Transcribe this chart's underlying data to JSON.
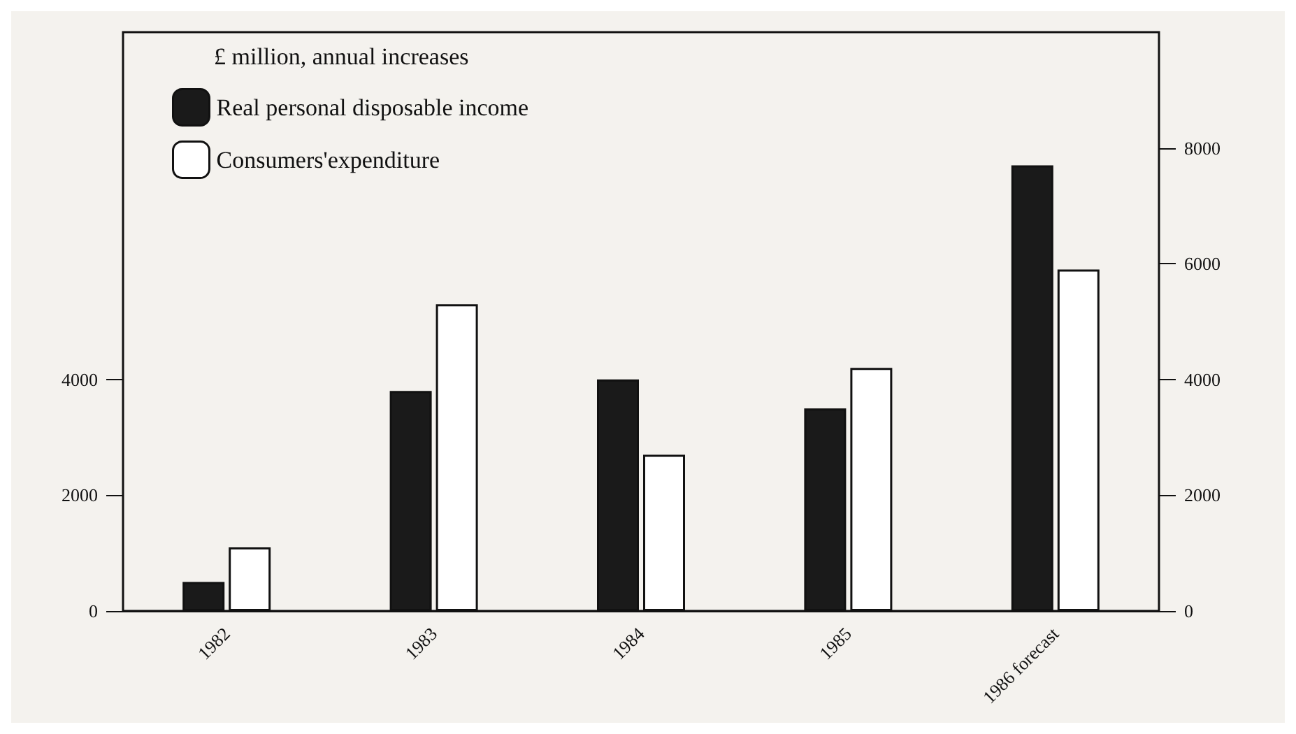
{
  "chart_data": {
    "type": "bar",
    "legend_title": "£ million, annual increases",
    "categories": [
      "1982",
      "1983",
      "1984",
      "1985",
      "1986 forecast"
    ],
    "series": [
      {
        "name": "Real personal disposable income",
        "color": "#1a1a1a",
        "values": [
          500,
          3800,
          4000,
          3500,
          7700
        ]
      },
      {
        "name": "Consumers'expenditure",
        "color": "#ffffff",
        "values": [
          1100,
          5300,
          2700,
          4200,
          5900
        ]
      }
    ],
    "ylim": [
      0,
      10000
    ],
    "yticks": [
      0,
      2000,
      4000
    ],
    "y2lim": [
      0,
      10000
    ],
    "y2ticks": [
      0,
      2000,
      4000,
      6000,
      8000
    ],
    "grid": false,
    "legend": "top left"
  }
}
